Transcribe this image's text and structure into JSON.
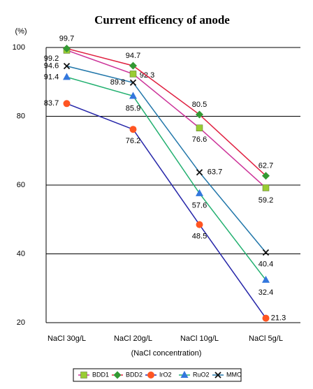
{
  "chart_data": {
    "type": "line",
    "title": "Current efficency of anode",
    "y_label": "(%)",
    "x_label": "(NaCl concentration)",
    "categories": [
      "NaCl 30g/L",
      "NaCl 20g/L",
      "NaCl 10g/L",
      "NaCl 5g/L"
    ],
    "ylim": [
      20,
      100
    ],
    "yticks": [
      20,
      40,
      60,
      80,
      100
    ],
    "grid": true,
    "legend": "bottom",
    "series": [
      {
        "name": "BDD1",
        "color": "#cc3399",
        "marker_color": "#99cc33",
        "marker": "square",
        "values": [
          99.2,
          92.3,
          76.6,
          59.2
        ]
      },
      {
        "name": "BDD2",
        "color": "#e02040",
        "marker_color": "#339933",
        "marker": "diamond",
        "values": [
          99.7,
          94.7,
          80.5,
          62.7
        ]
      },
      {
        "name": "IrO2",
        "color": "#2424a8",
        "marker_color": "#ff5522",
        "marker": "circle",
        "values": [
          83.7,
          76.2,
          48.5,
          21.3
        ]
      },
      {
        "name": "RuO2",
        "color": "#22b070",
        "marker_color": "#3377dd",
        "marker": "triangle",
        "values": [
          91.4,
          85.9,
          57.6,
          32.4
        ]
      },
      {
        "name": "MMO",
        "color": "#2277aa",
        "marker_color": "#111111",
        "marker": "x",
        "values": [
          94.6,
          89.8,
          63.7,
          40.4
        ]
      }
    ]
  }
}
